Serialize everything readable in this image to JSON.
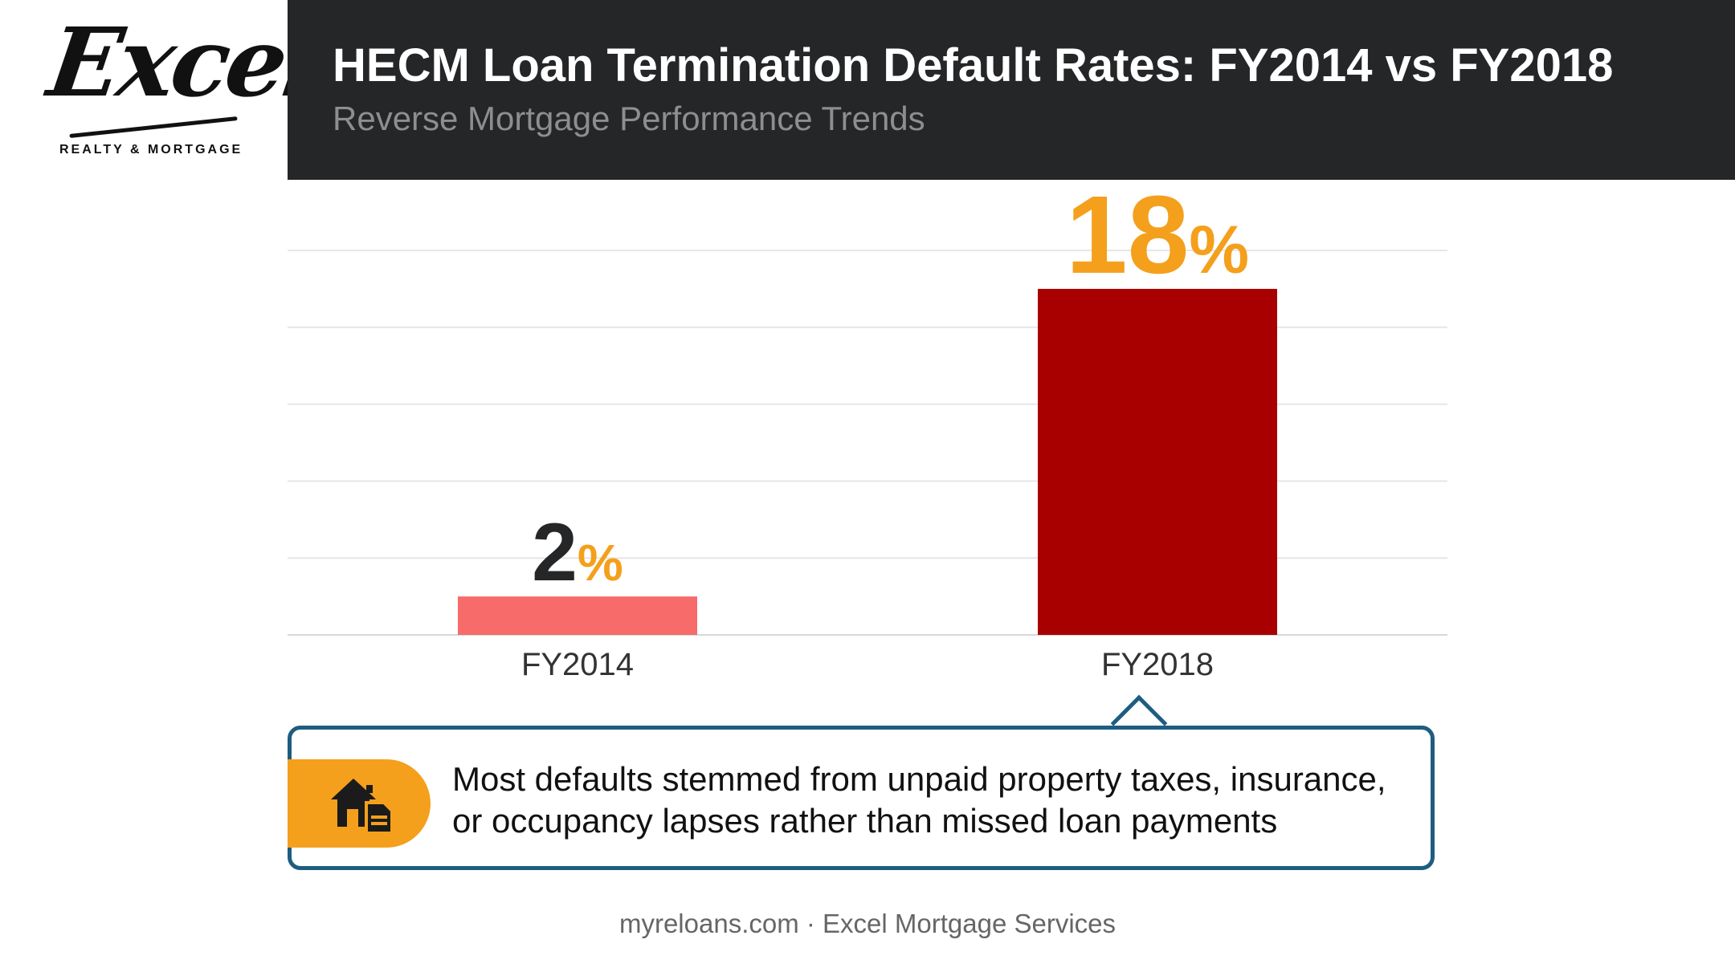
{
  "logo": {
    "script": "Excel",
    "tagline": "REALTY & MORTGAGE"
  },
  "header": {
    "title": "HECM Loan Termination Default Rates: FY2014 vs FY2018",
    "subtitle": "Reverse Mortgage Performance Trends"
  },
  "chart_data": {
    "type": "bar",
    "categories": [
      "FY2014",
      "FY2018"
    ],
    "values": [
      2,
      18
    ],
    "value_suffix": "%",
    "bar_colors": [
      "#f76b6b",
      "#a80000"
    ],
    "number_colors": [
      "#252628",
      "#f4a01c"
    ],
    "suffix_color": "#f4a01c",
    "ylim": [
      0,
      20
    ],
    "grid": true
  },
  "callout": {
    "icon": "house-document-icon",
    "lines": [
      "Most defaults stemmed from unpaid property taxes, insurance,",
      "or occupancy lapses rather than missed loan payments"
    ]
  },
  "footer": "myreloans.com · Excel Mortgage Services",
  "colors": {
    "accent": "#f4a01c",
    "border": "#1e5d80",
    "header_bg": "#252628"
  }
}
